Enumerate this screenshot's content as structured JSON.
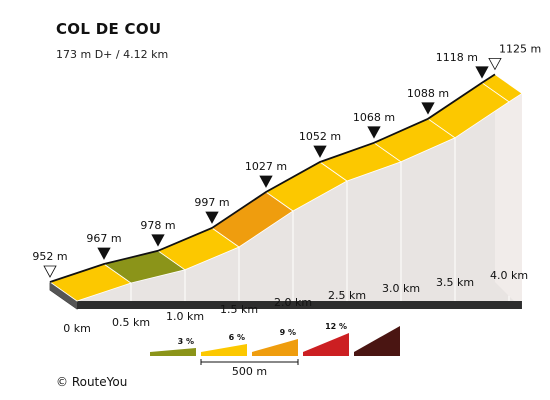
{
  "chart_data": {
    "type": "area",
    "title": "COL DE COU",
    "subtitle": "173 m D+ / 4.12 km",
    "x": [
      0,
      0.5,
      1.0,
      1.5,
      2.0,
      2.5,
      3.0,
      3.5,
      4.0,
      4.12
    ],
    "y": [
      952,
      967,
      978,
      997,
      1027,
      1052,
      1068,
      1088,
      1118,
      1125
    ],
    "x_tick_labels": [
      "0 km",
      "0.5 km",
      "1.0 km",
      "1.5 km",
      "2.0 km",
      "2.5 km",
      "3.0 km",
      "3.5 km",
      "4.0 km"
    ],
    "elevation_labels": [
      "952 m",
      "967 m",
      "978 m",
      "997 m",
      "1027 m",
      "1052 m",
      "1068 m",
      "1088 m",
      "1118 m",
      "1125 m"
    ],
    "segment_grade_colors": [
      "#fcc800",
      "#8b9419",
      "#fcc800",
      "#ef9d0e",
      "#fcc800",
      "#fcc800",
      "#fcc800",
      "#fcc800",
      "#fcc800"
    ],
    "legend": {
      "items": [
        {
          "label": "3 %",
          "color": "#8b9419"
        },
        {
          "label": "6 %",
          "color": "#fcc800"
        },
        {
          "label": "9 %",
          "color": "#ef9d0e"
        },
        {
          "label": "12 %",
          "color": "#cc1f22"
        },
        {
          "label": "",
          "color": "#4a1512"
        }
      ],
      "scale_label": "500 m"
    }
  },
  "footer": {
    "copyright": "© RouteYou"
  }
}
